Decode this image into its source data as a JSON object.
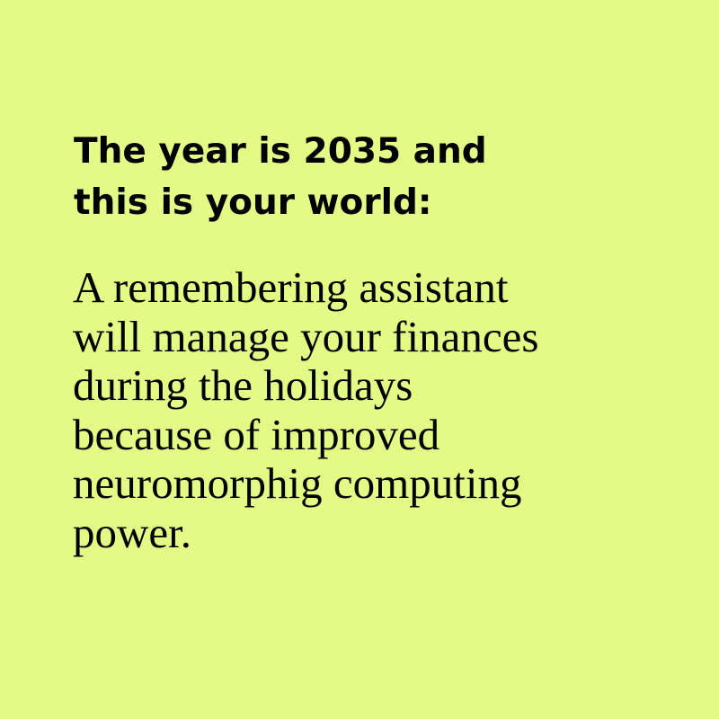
{
  "colors": {
    "background": "#e3fa86",
    "text": "#000000"
  },
  "heading": {
    "lines": [
      "The year is 2035 and",
      "this is your world:"
    ]
  },
  "body": {
    "lines": [
      "A remembering assistant",
      "will manage your finances",
      "during the holidays",
      "because of improved",
      "neuromorphig computing",
      "power."
    ]
  }
}
